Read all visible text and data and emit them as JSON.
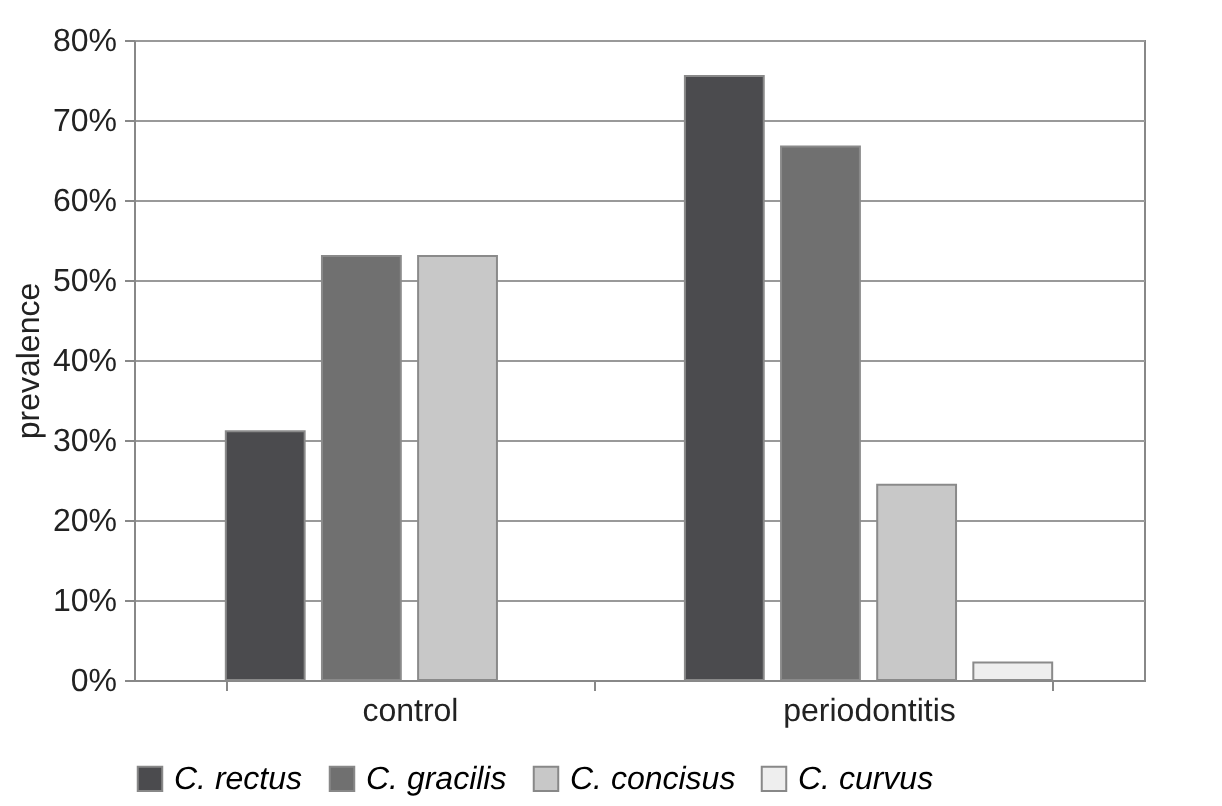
{
  "chart_data": {
    "type": "bar",
    "ylabel": "prevalence",
    "categories": [
      "control",
      "periodontitis"
    ],
    "series": [
      {
        "name": "C. rectus",
        "color": "#4b4b4e",
        "values": [
          31.1,
          75.5
        ]
      },
      {
        "name": "C. gracilis",
        "color": "#707070",
        "values": [
          53,
          66.7
        ]
      },
      {
        "name": "C. concisus",
        "color": "#c8c8c8",
        "values": [
          53,
          24.4
        ]
      },
      {
        "name": "C. curvus",
        "color": "#eeeeee",
        "values": [
          null,
          2.2
        ]
      }
    ],
    "ylim": [
      0,
      80
    ],
    "yticks": [
      {
        "value": 0,
        "label": "0%"
      },
      {
        "value": 10,
        "label": "10%"
      },
      {
        "value": 20,
        "label": "20%"
      },
      {
        "value": 30,
        "label": "30%"
      },
      {
        "value": 40,
        "label": "40%"
      },
      {
        "value": 50,
        "label": "50%"
      },
      {
        "value": 60,
        "label": "60%"
      },
      {
        "value": 70,
        "label": "70%"
      },
      {
        "value": 80,
        "label": "80%"
      }
    ],
    "grid": "y",
    "legend": "bottom"
  }
}
